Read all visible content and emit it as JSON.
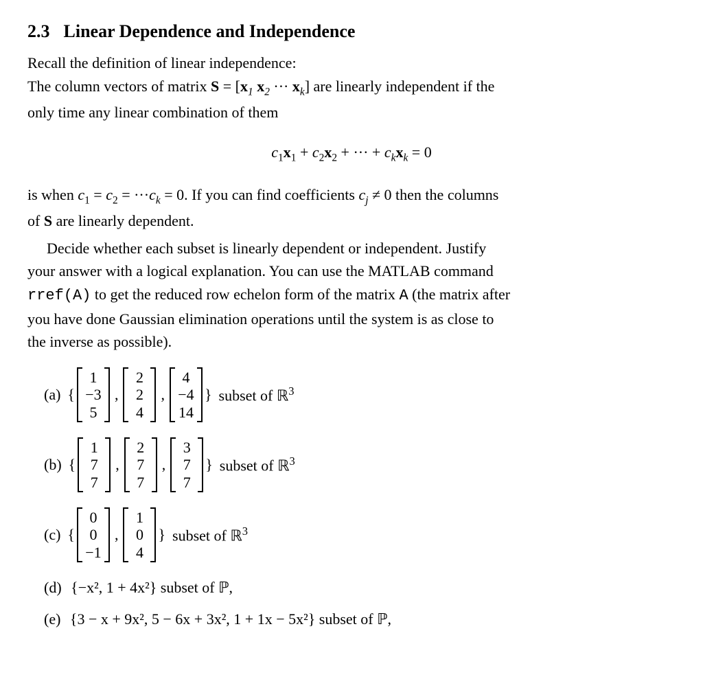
{
  "heading": {
    "number": "2.3",
    "title": "Linear Dependence and Independence"
  },
  "intro": {
    "line1": "Recall the definition of linear independence:",
    "line2_prefix": "The column vectors of matrix ",
    "line2_S": "S",
    "line2_eq": " = ",
    "line2_vecs_x1": "x",
    "line2_vecs_sub1": "1",
    "line2_vecs_x2": "x",
    "line2_vecs_sub2": "2",
    "line2_dots": " ··· ",
    "line2_vecs_xk": "x",
    "line2_vecs_subk": "k",
    "line2_suffix": " are linearly independent if the",
    "line3": "only time any linear combination of them"
  },
  "display_eq": {
    "c1": "c",
    "s1": "1",
    "x1": "x",
    "xs1": "1",
    "plus1": " + ",
    "c2": "c",
    "s2": "2",
    "x2": "x",
    "xs2": "2",
    "plus2": " + ··· + ",
    "ck": "c",
    "sk": "k",
    "xk": "x",
    "xsk": "k",
    "eq0": " = 0"
  },
  "para2": {
    "a": "is when ",
    "c1": "c",
    "s1": "1",
    "eq1": " = ",
    "c2": "c",
    "s2": "2",
    "eq2": " = ···",
    "ck": "c",
    "sk": "k",
    "eq3": " = 0. If you can find coefficients ",
    "cj": "c",
    "sj": "j",
    "neq": " ≠ 0 then the columns",
    "b": "of ",
    "S": "S",
    "c": " are linearly dependent."
  },
  "para3": {
    "line1": "Decide whether each subset is linearly dependent or independent.  Justify",
    "line2": "your answer with a logical explanation.  You can use the MATLAB command",
    "line3a": "rref(A)",
    "line3b": " to get the reduced row echelon form of the matrix ",
    "line3c": "A",
    "line3d": " (the matrix after",
    "line4": "you have done Gaussian elimination operations until the system is as close to",
    "line5": "the inverse as possible)."
  },
  "items": {
    "a": {
      "label": "(a)",
      "v1": [
        "1",
        "−3",
        "5"
      ],
      "v2": [
        "2",
        "2",
        "4"
      ],
      "v3": [
        "4",
        "−4",
        "14"
      ],
      "subset": " subset of ℝ",
      "sup": "3"
    },
    "b": {
      "label": "(b)",
      "v1": [
        "1",
        "7",
        "7"
      ],
      "v2": [
        "2",
        "7",
        "7"
      ],
      "v3": [
        "3",
        "7",
        "7"
      ],
      "subset": " subset of ℝ",
      "sup": "3"
    },
    "c": {
      "label": "(c)",
      "v1": [
        "0",
        "0",
        "−1"
      ],
      "v2": [
        "1",
        "0",
        "4"
      ],
      "subset": " subset of ℝ",
      "sup": "3"
    },
    "d": {
      "label": "(d)",
      "poly": "{−x², 1 + 4x²} subset of ℙ,"
    },
    "e": {
      "label": "(e)",
      "poly": "{3 − x + 9x², 5 − 6x + 3x², 1 + 1x − 5x²} subset of ℙ,"
    }
  }
}
